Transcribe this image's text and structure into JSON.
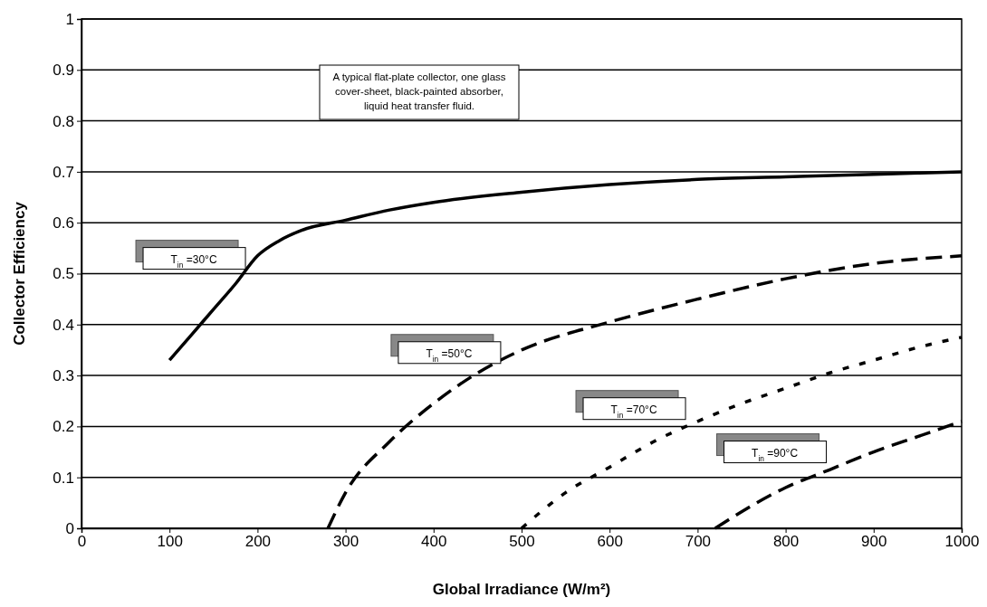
{
  "chart_data": {
    "type": "line",
    "xlabel": "Global Irradiance (W/m²)",
    "ylabel": "Collector Efficiency",
    "xlim": [
      0,
      1000
    ],
    "xticks": [
      0,
      100,
      200,
      300,
      400,
      500,
      600,
      700,
      800,
      900,
      1000
    ],
    "ylim": [
      0,
      1
    ],
    "yticks": [
      0,
      0.1,
      0.2,
      0.3,
      0.4,
      0.5,
      0.6,
      0.7,
      0.8,
      0.9,
      1
    ],
    "grid": "y",
    "marker": "none",
    "annotations": [
      "A typical flat-plate collector, one glass cover-sheet, black-painted absorber, liquid heat transfer fluid."
    ],
    "series": [
      {
        "name": "T$_{in}$ =30°C",
        "color": "#000000",
        "line_style": "solid",
        "x": [
          100,
          125,
          150,
          175,
          200,
          225,
          250,
          300,
          350,
          400,
          500,
          600,
          700,
          800,
          900,
          1000
        ],
        "values": [
          0.33,
          0.38,
          0.43,
          0.48,
          0.535,
          0.565,
          0.585,
          0.605,
          0.625,
          0.64,
          0.66,
          0.675,
          0.685,
          0.69,
          0.695,
          0.7
        ]
      },
      {
        "name": "T$_{in}$ =50°C",
        "color": "#000000",
        "line_style": "dashed",
        "x": [
          280,
          300,
          350,
          400,
          450,
          500,
          600,
          700,
          800,
          900,
          1000
        ],
        "values": [
          0,
          0.07,
          0.17,
          0.245,
          0.305,
          0.35,
          0.405,
          0.45,
          0.49,
          0.52,
          0.535
        ]
      },
      {
        "name": "T$_{in}$ =70°C",
        "color": "#000000",
        "line_style": "dotted",
        "x": [
          500,
          550,
          600,
          650,
          700,
          750,
          800,
          850,
          900,
          950,
          1000
        ],
        "values": [
          0,
          0.07,
          0.12,
          0.17,
          0.21,
          0.245,
          0.275,
          0.305,
          0.33,
          0.355,
          0.375
        ]
      },
      {
        "name": "T$_{in}$ =90°C",
        "color": "#000000",
        "line_style": "dashed",
        "x": [
          720,
          800,
          850,
          900,
          950,
          1000
        ],
        "values": [
          0,
          0.08,
          0.115,
          0.15,
          0.18,
          0.21
        ]
      }
    ]
  }
}
